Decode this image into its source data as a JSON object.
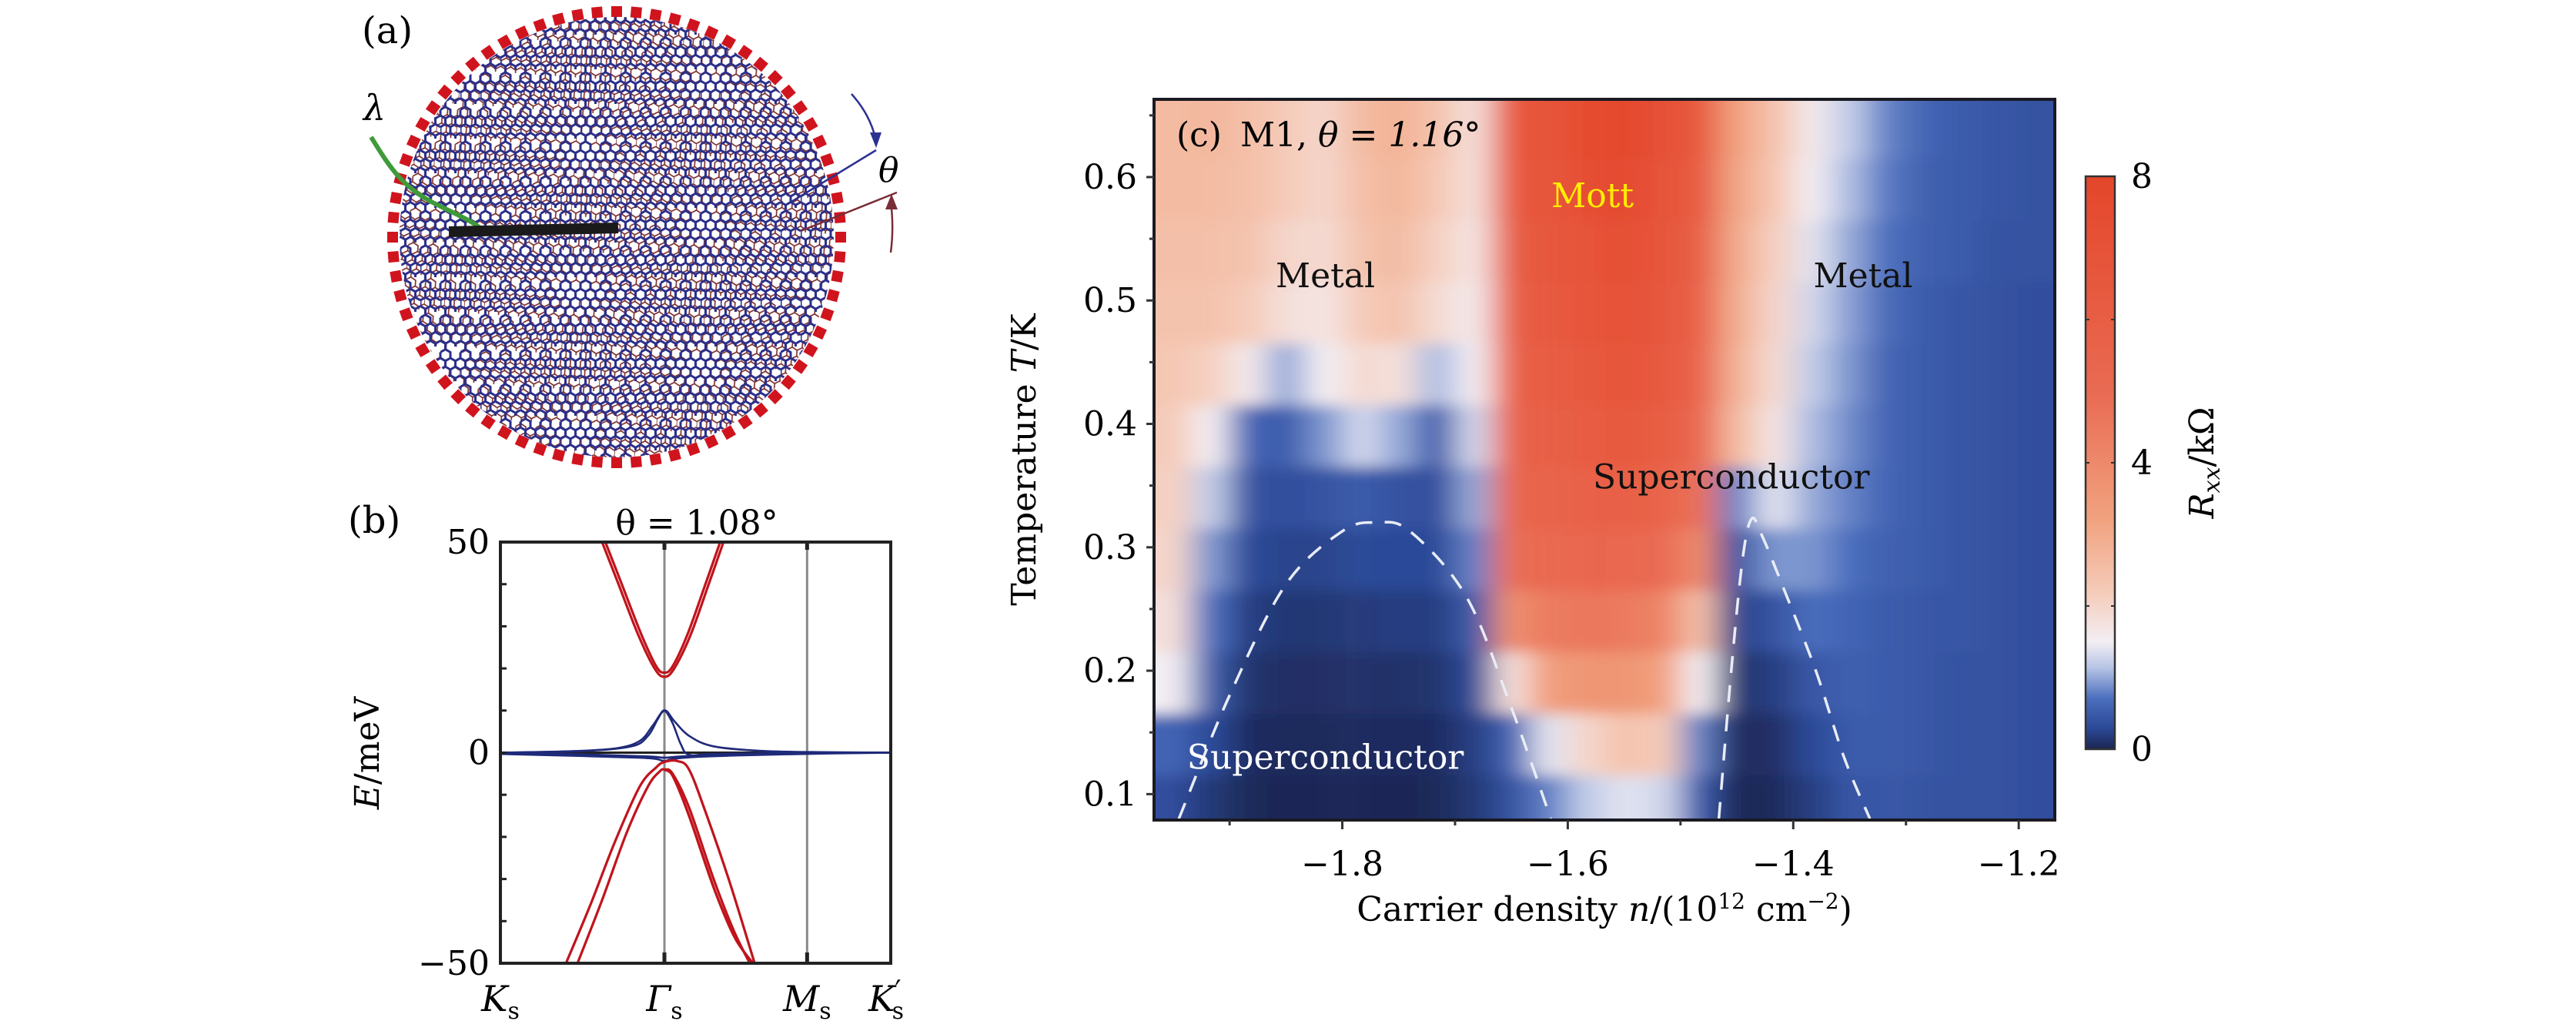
{
  "figure": {
    "panel_a": {
      "label": "(a)",
      "lambda_label": "λ",
      "theta_label": "θ",
      "colors": {
        "lattice_top": "#2b2f8a",
        "lattice_bottom": "#7a2a2a",
        "boundary_squares": "#d0141e",
        "lambda_line": "#3f9a3a",
        "scale_bar": "#1a1a1a",
        "arrow_top": "#2b3190",
        "arrow_bottom": "#7a2e36"
      }
    },
    "panel_b": {
      "label": "(b)",
      "title": "θ = 1.08°",
      "ylabel_italic": "E",
      "ylabel_rest": "/meV",
      "ytick_labels": [
        "50",
        "0",
        "−50"
      ],
      "xtick_labels": [
        {
          "main": "K",
          "sub": "s",
          "prime": ""
        },
        {
          "main": "Γ",
          "sub": "s",
          "prime": ""
        },
        {
          "main": "M",
          "sub": "s",
          "prime": ""
        },
        {
          "main": "K",
          "sub": "s",
          "prime": "′"
        }
      ]
    },
    "panel_c": {
      "label": "(c)",
      "sample": "M1,",
      "theta_text": "θ = 1.16°",
      "ylabel_text": "Temperature ",
      "ylabel_italic": "T",
      "ylabel_unit": "/K",
      "xlabel_text": "Carrier density ",
      "xlabel_italic": "n",
      "xlabel_unit_pre": "/(10",
      "xlabel_unit_exp": "12",
      "xlabel_unit_mid": " cm",
      "xlabel_unit_exp2": "−2",
      "xlabel_unit_post": ")",
      "ytick_labels": [
        "0.6",
        "0.5",
        "0.4",
        "0.3",
        "0.2",
        "0.1"
      ],
      "xtick_labels": [
        "−1.8",
        "−1.6",
        "−1.4",
        "−1.2"
      ],
      "annotations": {
        "metal_left": "Metal",
        "metal_right": "Metal",
        "mott": "Mott",
        "sc_top": "Superconductor",
        "sc_bottom": "Superconductor"
      },
      "colorbar": {
        "tick_labels": [
          "8",
          "4",
          "0"
        ],
        "label_main": "R",
        "label_sub": "xx",
        "label_unit": "/kΩ"
      },
      "colors": {
        "mott_text": "#ffee00",
        "sc_bottom_text": "#ffffff",
        "dashed_line": "#e8ecf5"
      }
    }
  },
  "chart_data": [
    {
      "panel": "b",
      "type": "line",
      "title": "θ = 1.08°",
      "xlabel": "",
      "ylabel": "E/meV",
      "ylim": [
        -50,
        50
      ],
      "yticks": [
        50,
        0,
        -50
      ],
      "yminor_step": 10,
      "xlim": [
        0,
        2.38
      ],
      "xticks": [
        {
          "k": 0,
          "label": "K_s"
        },
        {
          "k": 1.0,
          "label": "Γ_s"
        },
        {
          "k": 1.87,
          "label": "M_s"
        },
        {
          "k": 2.38,
          "label": "K'_s"
        }
      ],
      "vertical_lines_at": [
        1.0,
        1.87
      ],
      "series": [
        {
          "name": "conduction-1",
          "color": "#c0141c",
          "k": [
            0.62,
            0.72,
            0.84,
            0.94,
            1.0,
            1.06,
            1.16,
            1.27,
            1.36
          ],
          "E": [
            50,
            40,
            28,
            20,
            18,
            20,
            28,
            40,
            50
          ]
        },
        {
          "name": "conduction-2",
          "color": "#c0141c",
          "k": [
            0.64,
            0.74,
            0.86,
            0.95,
            1.0,
            1.05,
            1.14,
            1.25,
            1.34
          ],
          "E": [
            50,
            40,
            28,
            20.5,
            19,
            20.5,
            28,
            40,
            50
          ]
        },
        {
          "name": "flat-1",
          "color": "#1f2a7a",
          "k": [
            0.0,
            0.4,
            0.7,
            0.85,
            0.93,
            1.0,
            1.06,
            1.15,
            1.3,
            1.6,
            2.0,
            2.38
          ],
          "E": [
            0,
            0.3,
            1.0,
            2.8,
            6.5,
            10,
            7.5,
            4,
            1.5,
            0.4,
            0.1,
            0
          ]
        },
        {
          "name": "flat-2",
          "color": "#1f2a7a",
          "k": [
            0.0,
            0.5,
            0.8,
            0.9,
            0.96,
            1.0,
            1.05,
            1.1,
            1.15,
            1.3,
            1.8,
            2.38
          ],
          "E": [
            0,
            0.4,
            1.5,
            4,
            8,
            10,
            7,
            2,
            -0.5,
            -0.3,
            -0.1,
            0
          ]
        },
        {
          "name": "flat-3",
          "color": "#1f2a7a",
          "k": [
            0.0,
            0.5,
            0.85,
            0.95,
            1.0,
            1.05,
            1.2,
            1.5,
            2.0,
            2.38
          ],
          "E": [
            -0.3,
            -0.8,
            -1.2,
            -1.5,
            -2.0,
            -1.5,
            -1.0,
            -0.6,
            -0.2,
            0
          ]
        },
        {
          "name": "flat-4",
          "color": "#1f2a7a",
          "k": [
            0.0,
            0.5,
            0.9,
            1.0,
            1.1,
            1.4,
            2.0,
            2.38
          ],
          "E": [
            0,
            -0.4,
            -0.9,
            -1.2,
            -0.9,
            -0.4,
            -0.1,
            0
          ]
        },
        {
          "name": "valence-1",
          "color": "#c0141c",
          "k": [
            0.4,
            0.55,
            0.7,
            0.85,
            0.95,
            1.0,
            1.08,
            1.15,
            1.25,
            1.4,
            1.55
          ],
          "E": [
            -50,
            -36,
            -21,
            -8,
            -3.5,
            -2.2,
            -2.0,
            -4,
            -14,
            -31,
            -50
          ]
        },
        {
          "name": "valence-2",
          "color": "#c0141c",
          "k": [
            0.47,
            0.62,
            0.77,
            0.9,
            0.97,
            1.0,
            1.05,
            1.15,
            1.3,
            1.42,
            1.52
          ],
          "E": [
            -50,
            -35,
            -19,
            -8,
            -4.5,
            -4,
            -5,
            -13,
            -30,
            -42,
            -50
          ]
        },
        {
          "name": "valence-3",
          "color": "#c0141c",
          "k": [
            1.0,
            1.05,
            1.15,
            1.3,
            1.42,
            1.53
          ],
          "E": [
            -4,
            -5.5,
            -15,
            -32,
            -43,
            -50
          ]
        },
        {
          "name": "valence-4",
          "color": "#c0141c",
          "k": [
            1.0,
            1.06,
            1.16,
            1.31,
            1.43,
            1.54
          ],
          "E": [
            -4,
            -6,
            -16,
            -33,
            -44,
            -50
          ]
        }
      ]
    },
    {
      "panel": "c",
      "type": "heatmap",
      "title": "M1, θ = 1.16°",
      "xlabel": "Carrier density n/(10^12 cm^-2)",
      "ylabel": "Temperature T/K",
      "xlim": [
        -1.967,
        -1.168
      ],
      "ylim": [
        0.079,
        0.663
      ],
      "xticks": [
        -1.8,
        -1.6,
        -1.4,
        -1.2
      ],
      "xminor_step": 0.1,
      "yticks": [
        0.6,
        0.5,
        0.4,
        0.3,
        0.2,
        0.1
      ],
      "yminor_step": 0.05,
      "colorbar": {
        "label": "R_xx/kΩ",
        "range": [
          0,
          8
        ],
        "ticks": [
          0,
          4,
          8
        ],
        "placement": "right"
      },
      "colormap": [
        {
          "v": 0.0,
          "c": "#1b2552"
        },
        {
          "v": 0.3,
          "c": "#2c4a98"
        },
        {
          "v": 0.7,
          "c": "#4a6dbd"
        },
        {
          "v": 1.15,
          "c": "#b9c6e6"
        },
        {
          "v": 1.5,
          "c": "#f3eef3"
        },
        {
          "v": 2.2,
          "c": "#f5cbb9"
        },
        {
          "v": 3.2,
          "c": "#f1a27f"
        },
        {
          "v": 5.0,
          "c": "#e96a52"
        },
        {
          "v": 8.0,
          "c": "#e4462a"
        }
      ],
      "n_values": [
        -1.95,
        -1.917,
        -1.883,
        -1.85,
        -1.817,
        -1.783,
        -1.75,
        -1.717,
        -1.683,
        -1.65,
        -1.617,
        -1.583,
        -1.55,
        -1.517,
        -1.483,
        -1.45,
        -1.417,
        -1.383,
        -1.35,
        -1.317,
        -1.283,
        -1.25,
        -1.217,
        -1.185
      ],
      "T_values": [
        0.64,
        0.59,
        0.54,
        0.49,
        0.44,
        0.39,
        0.34,
        0.29,
        0.24,
        0.19,
        0.14,
        0.09
      ],
      "R_xx": [
        [
          2.6,
          2.7,
          2.5,
          2.2,
          2.0,
          2.6,
          2.8,
          2.4,
          1.8,
          6.5,
          7.0,
          7.6,
          7.8,
          7.2,
          6.5,
          3.2,
          2.4,
          1.6,
          1.2,
          0.8,
          0.6,
          0.5,
          0.45,
          0.4
        ],
        [
          2.6,
          2.6,
          2.5,
          2.2,
          2.0,
          2.5,
          2.7,
          2.3,
          1.8,
          6.3,
          6.8,
          7.3,
          7.5,
          7.0,
          6.3,
          3.1,
          2.3,
          1.5,
          1.1,
          0.75,
          0.55,
          0.5,
          0.45,
          0.4
        ],
        [
          2.5,
          2.5,
          2.4,
          2.0,
          1.9,
          2.4,
          2.6,
          2.1,
          1.7,
          6.0,
          6.6,
          7.0,
          7.2,
          6.8,
          6.0,
          3.0,
          2.1,
          1.4,
          1.0,
          0.7,
          0.55,
          0.5,
          0.4,
          0.4
        ],
        [
          2.4,
          2.4,
          2.2,
          1.8,
          1.7,
          2.2,
          2.4,
          1.9,
          1.6,
          5.8,
          6.4,
          6.8,
          7.0,
          6.6,
          5.8,
          2.9,
          2.0,
          1.3,
          0.95,
          0.65,
          0.5,
          0.45,
          0.4,
          0.35
        ],
        [
          2.3,
          2.1,
          1.6,
          1.0,
          1.5,
          1.9,
          1.8,
          1.1,
          1.5,
          5.6,
          6.2,
          6.5,
          6.7,
          6.4,
          5.6,
          2.8,
          1.9,
          1.2,
          0.9,
          0.6,
          0.5,
          0.45,
          0.4,
          0.35
        ],
        [
          2.2,
          1.5,
          0.6,
          0.5,
          0.9,
          1.3,
          1.0,
          0.5,
          1.3,
          5.4,
          6.0,
          6.2,
          6.3,
          6.1,
          5.3,
          2.6,
          1.7,
          1.1,
          0.85,
          0.6,
          0.5,
          0.45,
          0.4,
          0.35
        ],
        [
          2.1,
          1.2,
          0.4,
          0.35,
          0.4,
          0.5,
          0.4,
          0.35,
          1.0,
          5.2,
          5.6,
          5.8,
          5.8,
          5.6,
          4.8,
          0.8,
          1.4,
          1.0,
          0.8,
          0.6,
          0.5,
          0.45,
          0.4,
          0.35
        ],
        [
          2.0,
          0.9,
          0.3,
          0.25,
          0.25,
          0.3,
          0.3,
          0.3,
          0.8,
          4.8,
          5.2,
          5.3,
          5.2,
          5.0,
          4.0,
          0.4,
          0.9,
          0.9,
          0.7,
          0.55,
          0.5,
          0.45,
          0.4,
          0.35
        ],
        [
          1.8,
          0.7,
          0.2,
          0.15,
          0.15,
          0.18,
          0.2,
          0.2,
          0.5,
          3.8,
          4.5,
          4.6,
          4.5,
          4.2,
          2.5,
          0.25,
          0.4,
          0.7,
          0.6,
          0.5,
          0.45,
          0.45,
          0.4,
          0.35
        ],
        [
          1.5,
          0.5,
          0.12,
          0.08,
          0.08,
          0.1,
          0.1,
          0.12,
          0.3,
          1.8,
          3.4,
          3.6,
          3.6,
          3.3,
          1.5,
          0.12,
          0.2,
          0.45,
          0.55,
          0.5,
          0.45,
          0.4,
          0.4,
          0.35
        ],
        [
          0.6,
          0.3,
          0.06,
          0.04,
          0.04,
          0.05,
          0.05,
          0.06,
          0.2,
          0.6,
          1.4,
          2.0,
          2.4,
          2.2,
          0.8,
          0.05,
          0.08,
          0.3,
          0.5,
          0.5,
          0.45,
          0.4,
          0.4,
          0.35
        ],
        [
          0.35,
          0.15,
          0.03,
          0.02,
          0.02,
          0.02,
          0.02,
          0.03,
          0.15,
          0.4,
          0.8,
          1.2,
          1.4,
          1.3,
          0.5,
          0.02,
          0.04,
          0.2,
          0.45,
          0.45,
          0.4,
          0.4,
          0.4,
          0.35
        ]
      ],
      "dashed_domes": [
        {
          "name": "Tc-dome-left",
          "n": [
            -1.945,
            -1.9,
            -1.85,
            -1.8,
            -1.77,
            -1.74,
            -1.69,
            -1.65,
            -1.615
          ],
          "T": [
            0.08,
            0.18,
            0.27,
            0.313,
            0.32,
            0.313,
            0.26,
            0.17,
            0.08
          ]
        },
        {
          "name": "Tc-dome-right",
          "n": [
            -1.466,
            -1.455,
            -1.445,
            -1.437,
            -1.428,
            -1.41,
            -1.38,
            -1.355,
            -1.332
          ],
          "T": [
            0.08,
            0.2,
            0.29,
            0.323,
            0.31,
            0.27,
            0.2,
            0.13,
            0.08
          ]
        }
      ],
      "annotations": [
        {
          "text": "Metal",
          "n": -1.815,
          "T": 0.52
        },
        {
          "text": "Mott",
          "n": -1.578,
          "T": 0.585
        },
        {
          "text": "Metal",
          "n": -1.338,
          "T": 0.52
        },
        {
          "text": "Superconductor",
          "n": -1.455,
          "T": 0.357
        },
        {
          "text": "Superconductor",
          "n": -1.815,
          "T": 0.13
        }
      ]
    }
  ]
}
